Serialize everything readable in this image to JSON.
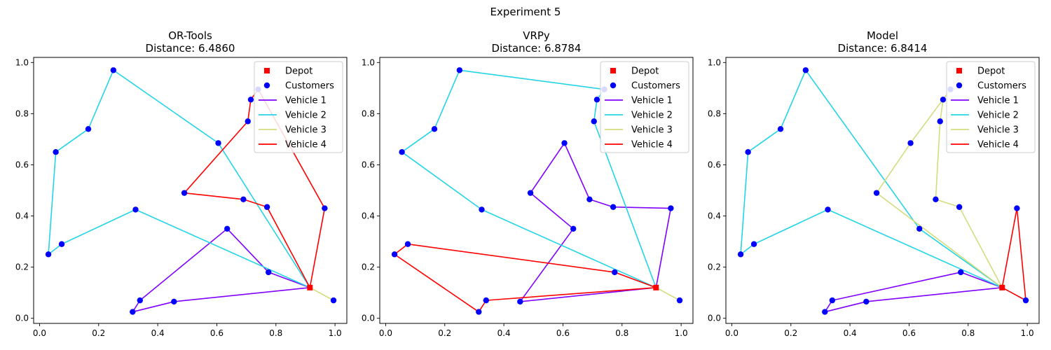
{
  "figure": {
    "suptitle": "Experiment 5"
  },
  "chart_data": [
    {
      "type": "scatter",
      "title": "OR-Tools",
      "subtitle": "Distance: 6.4860",
      "xlim": [
        -0.02,
        1.04
      ],
      "ylim": [
        -0.02,
        1.02
      ],
      "xticks": [
        "0.0",
        "0.2",
        "0.4",
        "0.6",
        "0.8",
        "1.0"
      ],
      "yticks": [
        "0.0",
        "0.2",
        "0.4",
        "0.6",
        "0.8",
        "1.0"
      ],
      "legend_position": "top-right",
      "depot": {
        "name": "Depot",
        "x": 0.915,
        "y": 0.12,
        "color": "#ff0000"
      },
      "customers": {
        "name": "Customers",
        "color": "#0000ff",
        "points": [
          [
            0.03,
            0.25
          ],
          [
            0.055,
            0.65
          ],
          [
            0.075,
            0.29
          ],
          [
            0.165,
            0.74
          ],
          [
            0.25,
            0.97
          ],
          [
            0.315,
            0.025
          ],
          [
            0.325,
            0.425
          ],
          [
            0.34,
            0.07
          ],
          [
            0.455,
            0.065
          ],
          [
            0.49,
            0.49
          ],
          [
            0.605,
            0.685
          ],
          [
            0.635,
            0.35
          ],
          [
            0.69,
            0.465
          ],
          [
            0.705,
            0.77
          ],
          [
            0.715,
            0.855
          ],
          [
            0.74,
            0.895
          ],
          [
            0.77,
            0.435
          ],
          [
            0.775,
            0.18
          ],
          [
            0.965,
            0.43
          ],
          [
            0.995,
            0.07
          ]
        ]
      },
      "routes": [
        {
          "name": "Vehicle 1",
          "color": "#7f00ff",
          "points": [
            [
              0.915,
              0.12
            ],
            [
              0.455,
              0.065
            ],
            [
              0.315,
              0.025
            ],
            [
              0.34,
              0.07
            ],
            [
              0.635,
              0.35
            ],
            [
              0.775,
              0.18
            ],
            [
              0.915,
              0.12
            ]
          ]
        },
        {
          "name": "Vehicle 2",
          "color": "#24d4e6",
          "points": [
            [
              0.915,
              0.12
            ],
            [
              0.325,
              0.425
            ],
            [
              0.075,
              0.29
            ],
            [
              0.03,
              0.25
            ],
            [
              0.055,
              0.65
            ],
            [
              0.165,
              0.74
            ],
            [
              0.25,
              0.97
            ],
            [
              0.605,
              0.685
            ],
            [
              0.915,
              0.12
            ]
          ]
        },
        {
          "name": "Vehicle 3",
          "color": "#d4dc7e",
          "points": [
            [
              0.915,
              0.12
            ],
            [
              0.995,
              0.07
            ],
            [
              0.915,
              0.12
            ]
          ]
        },
        {
          "name": "Vehicle 4",
          "color": "#ff0000",
          "points": [
            [
              0.915,
              0.12
            ],
            [
              0.965,
              0.43
            ],
            [
              0.74,
              0.895
            ],
            [
              0.715,
              0.855
            ],
            [
              0.705,
              0.77
            ],
            [
              0.49,
              0.49
            ],
            [
              0.69,
              0.465
            ],
            [
              0.77,
              0.435
            ],
            [
              0.915,
              0.12
            ]
          ]
        }
      ]
    },
    {
      "type": "scatter",
      "title": "VRPy",
      "subtitle": "Distance: 6.8784",
      "xlim": [
        -0.02,
        1.04
      ],
      "ylim": [
        -0.02,
        1.02
      ],
      "xticks": [
        "0.0",
        "0.2",
        "0.4",
        "0.6",
        "0.8",
        "1.0"
      ],
      "yticks": [
        "0.0",
        "0.2",
        "0.4",
        "0.6",
        "0.8",
        "1.0"
      ],
      "legend_position": "top-right",
      "depot": {
        "name": "Depot",
        "x": 0.915,
        "y": 0.12,
        "color": "#ff0000"
      },
      "customers": {
        "name": "Customers",
        "color": "#0000ff",
        "points": [
          [
            0.03,
            0.25
          ],
          [
            0.055,
            0.65
          ],
          [
            0.075,
            0.29
          ],
          [
            0.165,
            0.74
          ],
          [
            0.25,
            0.97
          ],
          [
            0.315,
            0.025
          ],
          [
            0.325,
            0.425
          ],
          [
            0.34,
            0.07
          ],
          [
            0.455,
            0.065
          ],
          [
            0.49,
            0.49
          ],
          [
            0.605,
            0.685
          ],
          [
            0.635,
            0.35
          ],
          [
            0.69,
            0.465
          ],
          [
            0.705,
            0.77
          ],
          [
            0.715,
            0.855
          ],
          [
            0.74,
            0.895
          ],
          [
            0.77,
            0.435
          ],
          [
            0.775,
            0.18
          ],
          [
            0.965,
            0.43
          ],
          [
            0.995,
            0.07
          ]
        ]
      },
      "routes": [
        {
          "name": "Vehicle 1",
          "color": "#7f00ff",
          "points": [
            [
              0.915,
              0.12
            ],
            [
              0.455,
              0.065
            ],
            [
              0.635,
              0.35
            ],
            [
              0.49,
              0.49
            ],
            [
              0.605,
              0.685
            ],
            [
              0.69,
              0.465
            ],
            [
              0.77,
              0.435
            ],
            [
              0.965,
              0.43
            ],
            [
              0.915,
              0.12
            ]
          ]
        },
        {
          "name": "Vehicle 2",
          "color": "#24d4e6",
          "points": [
            [
              0.915,
              0.12
            ],
            [
              0.325,
              0.425
            ],
            [
              0.055,
              0.65
            ],
            [
              0.165,
              0.74
            ],
            [
              0.25,
              0.97
            ],
            [
              0.74,
              0.895
            ],
            [
              0.715,
              0.855
            ],
            [
              0.705,
              0.77
            ],
            [
              0.915,
              0.12
            ]
          ]
        },
        {
          "name": "Vehicle 3",
          "color": "#d4dc7e",
          "points": [
            [
              0.915,
              0.12
            ],
            [
              0.995,
              0.07
            ],
            [
              0.915,
              0.12
            ]
          ]
        },
        {
          "name": "Vehicle 4",
          "color": "#ff0000",
          "points": [
            [
              0.915,
              0.12
            ],
            [
              0.775,
              0.18
            ],
            [
              0.075,
              0.29
            ],
            [
              0.03,
              0.25
            ],
            [
              0.315,
              0.025
            ],
            [
              0.34,
              0.07
            ],
            [
              0.915,
              0.12
            ]
          ]
        }
      ]
    },
    {
      "type": "scatter",
      "title": "Model",
      "subtitle": "Distance: 6.8414",
      "xlim": [
        -0.02,
        1.04
      ],
      "ylim": [
        -0.02,
        1.02
      ],
      "xticks": [
        "0.0",
        "0.2",
        "0.4",
        "0.6",
        "0.8",
        "1.0"
      ],
      "yticks": [
        "0.0",
        "0.2",
        "0.4",
        "0.6",
        "0.8",
        "1.0"
      ],
      "legend_position": "top-right",
      "depot": {
        "name": "Depot",
        "x": 0.915,
        "y": 0.12,
        "color": "#ff0000"
      },
      "customers": {
        "name": "Customers",
        "color": "#0000ff",
        "points": [
          [
            0.03,
            0.25
          ],
          [
            0.055,
            0.65
          ],
          [
            0.075,
            0.29
          ],
          [
            0.165,
            0.74
          ],
          [
            0.25,
            0.97
          ],
          [
            0.315,
            0.025
          ],
          [
            0.325,
            0.425
          ],
          [
            0.34,
            0.07
          ],
          [
            0.455,
            0.065
          ],
          [
            0.49,
            0.49
          ],
          [
            0.605,
            0.685
          ],
          [
            0.635,
            0.35
          ],
          [
            0.69,
            0.465
          ],
          [
            0.705,
            0.77
          ],
          [
            0.715,
            0.855
          ],
          [
            0.74,
            0.895
          ],
          [
            0.77,
            0.435
          ],
          [
            0.775,
            0.18
          ],
          [
            0.965,
            0.43
          ],
          [
            0.995,
            0.07
          ]
        ]
      },
      "routes": [
        {
          "name": "Vehicle 1",
          "color": "#7f00ff",
          "points": [
            [
              0.915,
              0.12
            ],
            [
              0.455,
              0.065
            ],
            [
              0.315,
              0.025
            ],
            [
              0.34,
              0.07
            ],
            [
              0.775,
              0.18
            ],
            [
              0.915,
              0.12
            ]
          ]
        },
        {
          "name": "Vehicle 2",
          "color": "#24d4e6",
          "points": [
            [
              0.915,
              0.12
            ],
            [
              0.325,
              0.425
            ],
            [
              0.075,
              0.29
            ],
            [
              0.03,
              0.25
            ],
            [
              0.055,
              0.65
            ],
            [
              0.165,
              0.74
            ],
            [
              0.25,
              0.97
            ],
            [
              0.635,
              0.35
            ],
            [
              0.915,
              0.12
            ]
          ]
        },
        {
          "name": "Vehicle 3",
          "color": "#d4dc7e",
          "points": [
            [
              0.915,
              0.12
            ],
            [
              0.49,
              0.49
            ],
            [
              0.605,
              0.685
            ],
            [
              0.74,
              0.895
            ],
            [
              0.715,
              0.855
            ],
            [
              0.705,
              0.77
            ],
            [
              0.69,
              0.465
            ],
            [
              0.77,
              0.435
            ],
            [
              0.915,
              0.12
            ]
          ]
        },
        {
          "name": "Vehicle 4",
          "color": "#ff0000",
          "points": [
            [
              0.915,
              0.12
            ],
            [
              0.995,
              0.07
            ],
            [
              0.965,
              0.43
            ],
            [
              0.915,
              0.12
            ]
          ]
        }
      ]
    }
  ]
}
